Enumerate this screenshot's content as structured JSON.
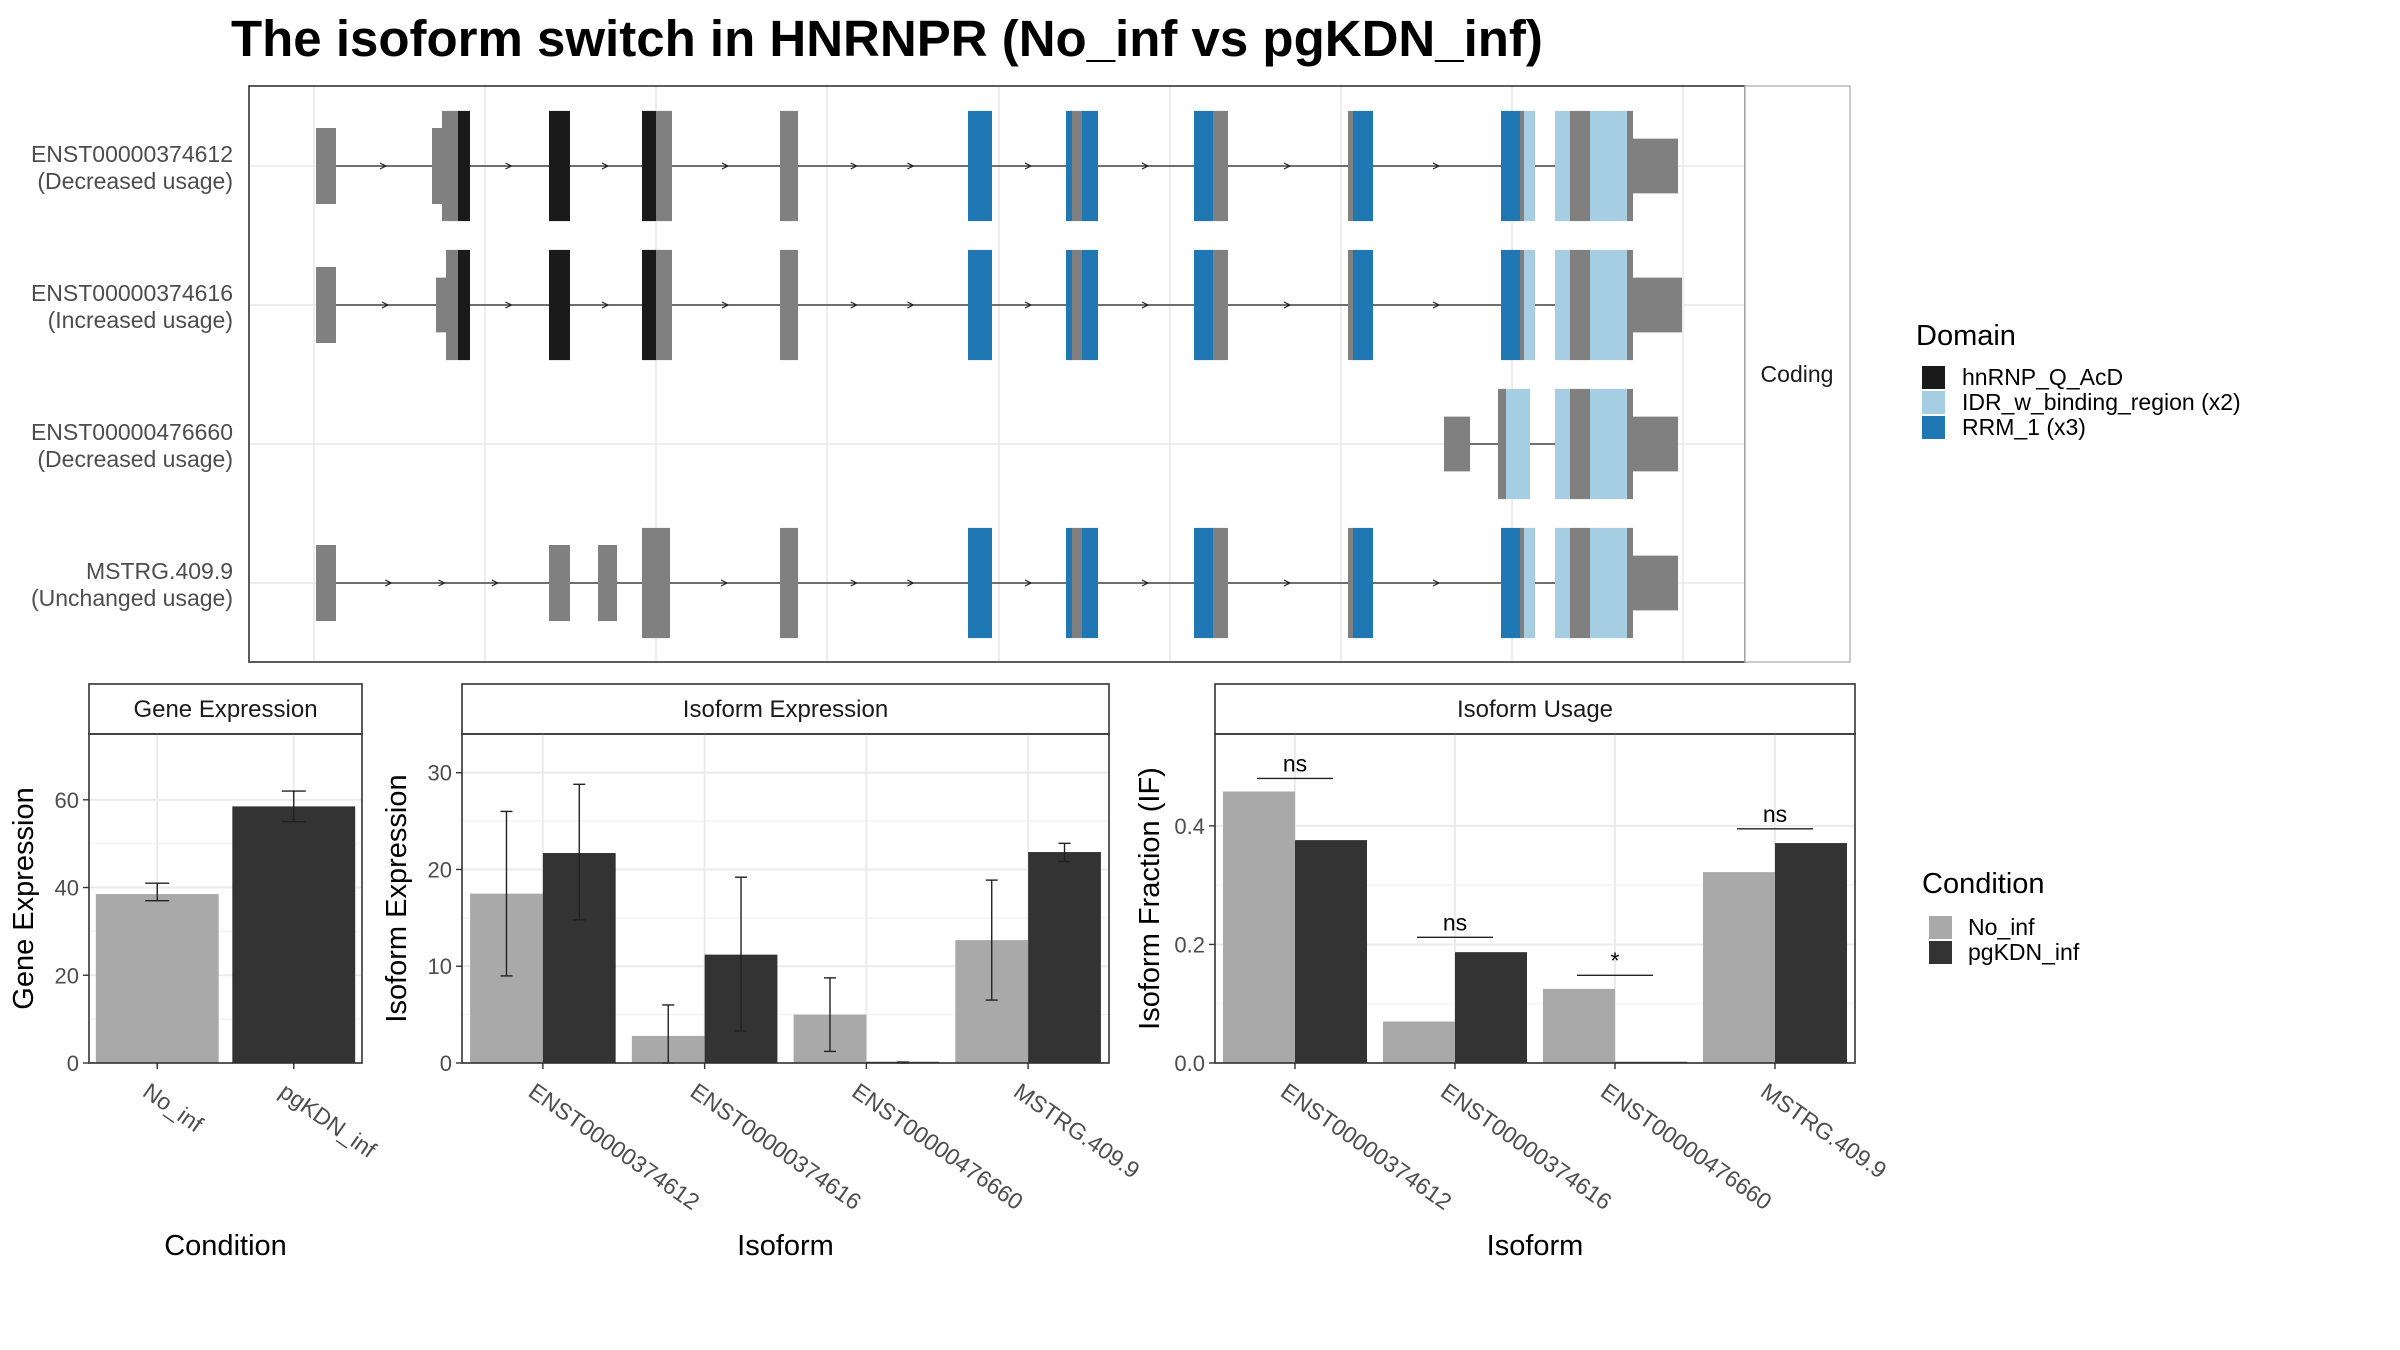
{
  "title": "The isoform switch in HNRNPR (No_inf vs pgKDN_inf)",
  "colors": {
    "hnRNP_Q_AcD": "#1a1a1a",
    "IDR_w_binding_region": "#a6cee3",
    "RRM_1": "#1f78b4",
    "exon": "#808080",
    "No_inf": "#a9a9a9",
    "pgKDN_inf": "#333333"
  },
  "structure": {
    "strip_label": "Coding",
    "transcripts": [
      {
        "name": "ENST00000374612",
        "usage": "(Decreased usage)"
      },
      {
        "name": "ENST00000374616",
        "usage": "(Increased usage)"
      },
      {
        "name": "ENST00000476660",
        "usage": "(Decreased usage)"
      },
      {
        "name": "MSTRG.409.9",
        "usage": "(Unchanged usage)"
      }
    ]
  },
  "legend_domain": {
    "title": "Domain",
    "items": [
      {
        "label": "hnRNP_Q_AcD",
        "color": "#1a1a1a"
      },
      {
        "label": "IDR_w_binding_region (x2)",
        "color": "#a6cee3"
      },
      {
        "label": "RRM_1 (x3)",
        "color": "#1f78b4"
      }
    ]
  },
  "legend_condition": {
    "title": "Condition",
    "items": [
      {
        "label": "No_inf",
        "color": "#a9a9a9"
      },
      {
        "label": "pgKDN_inf",
        "color": "#333333"
      }
    ]
  },
  "chart_data": [
    {
      "type": "bar",
      "strip": "Gene Expression",
      "xlabel": "Condition",
      "ylabel": "Gene Expression",
      "ylim": [
        0,
        75
      ],
      "yticks": [
        0,
        20,
        40,
        60
      ],
      "categories": [
        "No_inf",
        "pgKDN_inf"
      ],
      "values": [
        38.5,
        58.5
      ],
      "err_low": [
        37,
        55
      ],
      "err_high": [
        41,
        62
      ],
      "colors": [
        "#a9a9a9",
        "#333333"
      ]
    },
    {
      "type": "bar",
      "strip": "Isoform Expression",
      "xlabel": "Isoform",
      "ylabel": "Isoform Expression",
      "ylim": [
        0,
        34
      ],
      "yticks": [
        0,
        10,
        20,
        30
      ],
      "categories": [
        "ENST00000374612",
        "ENST00000374616",
        "ENST00000476660",
        "MSTRG.409.9"
      ],
      "series": [
        {
          "name": "No_inf",
          "values": [
            17.5,
            2.8,
            5.0,
            12.7
          ],
          "err_low": [
            9.0,
            0.0,
            1.2,
            6.5
          ],
          "err_high": [
            26.0,
            6.0,
            8.8,
            18.9
          ]
        },
        {
          "name": "pgKDN_inf",
          "values": [
            21.7,
            11.2,
            0.05,
            21.8
          ],
          "err_low": [
            14.8,
            3.3,
            0.0,
            20.8
          ],
          "err_high": [
            28.8,
            19.2,
            0.1,
            22.7
          ]
        }
      ]
    },
    {
      "type": "bar",
      "strip": "Isoform Usage",
      "xlabel": "Isoform",
      "ylabel": "Isoform Fraction (IF)",
      "ylim": [
        0,
        0.555
      ],
      "yticks": [
        0.0,
        0.2,
        0.4
      ],
      "ytick_labels": [
        "0.0",
        "0.2",
        "0.4"
      ],
      "categories": [
        "ENST00000374612",
        "ENST00000374616",
        "ENST00000476660",
        "MSTRG.409.9"
      ],
      "series": [
        {
          "name": "No_inf",
          "values": [
            0.458,
            0.07,
            0.125,
            0.322
          ]
        },
        {
          "name": "pgKDN_inf",
          "values": [
            0.376,
            0.187,
            0.0,
            0.371
          ]
        }
      ],
      "significance": [
        "ns",
        "ns",
        "*",
        "ns"
      ],
      "sig_y": [
        0.48,
        0.212,
        0.148,
        0.395
      ]
    }
  ]
}
